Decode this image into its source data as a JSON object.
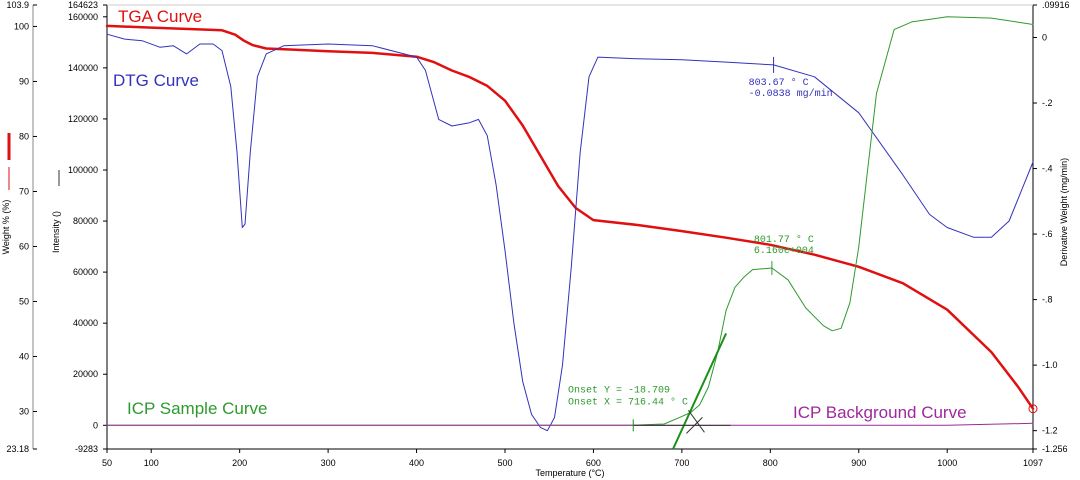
{
  "chart_data": {
    "type": "line",
    "xlabel": "Temperature (°C)",
    "xlim": [
      50,
      1097
    ],
    "x_ticks": [
      50,
      100,
      200,
      300,
      400,
      500,
      600,
      700,
      800,
      900,
      1000,
      1097
    ],
    "y_axes": {
      "weight": {
        "label": "Weight % (%)",
        "range": [
          23.18,
          103.9
        ],
        "ticks": [
          23.18,
          30,
          40,
          50,
          60,
          70,
          80,
          90,
          100,
          103.9
        ],
        "color": "#dd1111"
      },
      "intensity": {
        "label": "Intensity ()",
        "range": [
          -9283,
          164623
        ],
        "ticks": [
          -9283,
          0,
          20000,
          40000,
          60000,
          80000,
          100000,
          120000,
          140000,
          160000,
          164623
        ],
        "color": "#333333"
      },
      "derivative": {
        "label": "Derivative Weight (mg/min)",
        "range": [
          -1.256,
          0.09916
        ],
        "ticks": [
          -1.256,
          -1.2,
          -1.0,
          -0.8,
          -0.6,
          -0.4,
          -0.2,
          0,
          0.09916
        ],
        "tick_labels": [
          "-1.256",
          "-1.2",
          "-1.0",
          "-.8",
          "-.6",
          "-.4",
          "-.2",
          "0",
          ".09916"
        ]
      }
    },
    "series": [
      {
        "name": "TGA Curve",
        "axis": "weight",
        "color": "#e01010",
        "x": [
          50,
          100,
          150,
          180,
          195,
          205,
          215,
          230,
          260,
          300,
          350,
          400,
          420,
          440,
          460,
          480,
          500,
          520,
          540,
          560,
          580,
          600,
          650,
          700,
          750,
          800,
          850,
          900,
          950,
          1000,
          1050,
          1080,
          1097
        ],
        "y": [
          100.1,
          99.8,
          99.5,
          99.3,
          98.5,
          97.4,
          96.6,
          96.0,
          95.8,
          95.5,
          95.2,
          94.5,
          93.5,
          92.0,
          90.8,
          89.2,
          86.5,
          82.0,
          76.5,
          71.0,
          67.0,
          64.8,
          63.9,
          62.8,
          61.6,
          60.3,
          58.5,
          56.3,
          53.3,
          48.5,
          40.8,
          34.5,
          30.5
        ]
      },
      {
        "name": "DTG Curve",
        "axis": "derivative",
        "color": "#3333bb",
        "x": [
          50,
          70,
          90,
          110,
          125,
          140,
          155,
          170,
          180,
          190,
          197,
          203,
          206,
          212,
          220,
          230,
          250,
          300,
          350,
          400,
          410,
          425,
          440,
          460,
          470,
          480,
          490,
          500,
          510,
          520,
          530,
          540,
          548,
          556,
          565,
          575,
          585,
          595,
          605,
          650,
          700,
          750,
          803.67,
          850,
          900,
          950,
          980,
          1000,
          1030,
          1050,
          1070,
          1085,
          1097
        ],
        "y": [
          0.01,
          -0.005,
          -0.01,
          -0.03,
          -0.025,
          -0.05,
          -0.02,
          -0.02,
          -0.04,
          -0.15,
          -0.35,
          -0.58,
          -0.57,
          -0.35,
          -0.12,
          -0.05,
          -0.025,
          -0.02,
          -0.025,
          -0.06,
          -0.1,
          -0.25,
          -0.27,
          -0.26,
          -0.25,
          -0.3,
          -0.45,
          -0.65,
          -0.87,
          -1.05,
          -1.15,
          -1.19,
          -1.2,
          -1.16,
          -1.0,
          -0.7,
          -0.35,
          -0.12,
          -0.06,
          -0.065,
          -0.068,
          -0.075,
          -0.0838,
          -0.12,
          -0.23,
          -0.42,
          -0.54,
          -0.58,
          -0.61,
          -0.61,
          -0.56,
          -0.46,
          -0.38
        ]
      },
      {
        "name": "ICP Sample Curve",
        "axis": "intensity",
        "color": "#2e9a2e",
        "x": [
          50,
          640,
          680,
          700,
          710,
          720,
          730,
          740,
          750,
          760,
          770,
          780,
          801.77,
          820,
          840,
          860,
          870,
          880,
          890,
          900,
          910,
          920,
          940,
          960,
          980,
          1000,
          1050,
          1097
        ],
        "y": [
          0,
          0,
          500,
          3500,
          5000,
          8000,
          15000,
          28000,
          45000,
          54000,
          58000,
          61000,
          61600,
          57000,
          46000,
          39000,
          37000,
          38000,
          48000,
          70000,
          100000,
          130000,
          155000,
          158000,
          159000,
          160000,
          159500,
          157000
        ]
      },
      {
        "name": "ICP Background Curve",
        "axis": "intensity",
        "color": "#9c2a9c",
        "x": [
          50,
          1000,
          1097
        ],
        "y": [
          0,
          0,
          800
        ]
      }
    ],
    "annotations": [
      {
        "text": "803.67 ° C",
        "text2": "-0.0838 mg/min",
        "x": 803.67,
        "y": -0.0838,
        "axis": "derivative",
        "color": "#3333bb"
      },
      {
        "text": "801.77 ° C",
        "text2": "6.160e+004",
        "x": 801.77,
        "y": 61600,
        "axis": "intensity",
        "color": "#2e9a2e"
      },
      {
        "text": "Onset Y = -18.709",
        "text2": "Onset X = 716.44 ° C",
        "x": 716.44,
        "y": -18.709,
        "axis": "intensity",
        "color": "#2e9a2e"
      }
    ]
  }
}
